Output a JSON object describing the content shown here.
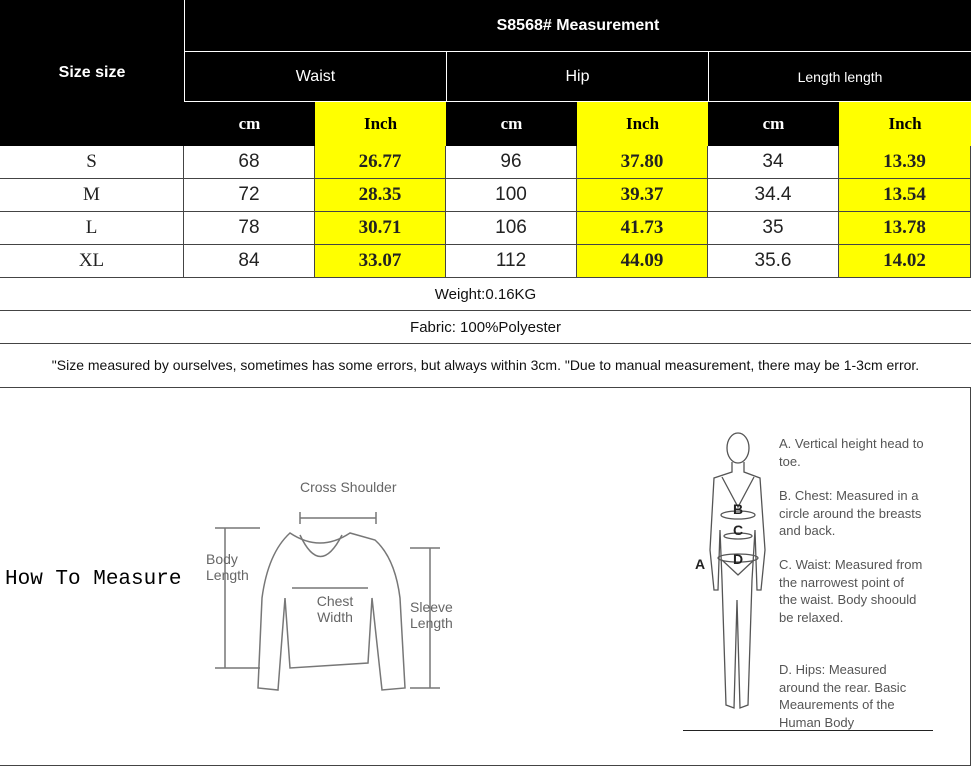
{
  "title": "S8568# Measurement",
  "size_header": "Size size",
  "groups": [
    "Waist",
    "Hip",
    "Length length"
  ],
  "units": [
    "cm",
    "Inch",
    "cm",
    "Inch",
    "cm",
    "Inch"
  ],
  "rows": [
    {
      "size": "S",
      "values": [
        "68",
        "26.77",
        "96",
        "37.80",
        "34",
        "13.39"
      ]
    },
    {
      "size": "M",
      "values": [
        "72",
        "28.35",
        "100",
        "39.37",
        "34.4",
        "13.54"
      ]
    },
    {
      "size": "L",
      "values": [
        "78",
        "30.71",
        "106",
        "41.73",
        "35",
        "13.78"
      ]
    },
    {
      "size": "XL",
      "values": [
        "84",
        "33.07",
        "112",
        "44.09",
        "35.6",
        "14.02"
      ]
    }
  ],
  "weight": "Weight:0.16KG",
  "fabric": "Fabric: 100%Polyester",
  "note": "\"Size measured by ourselves, sometimes has some errors, but always within 3cm. \"Due to manual measurement, there may be 1-3cm error.",
  "how_to_measure": "How To Measure",
  "garment_labels": {
    "cross_shoulder": "Cross Shoulder",
    "body_length": "Body Length",
    "chest_width": "Chest Width",
    "sleeve_length": "Sleeve Length"
  },
  "body_markers": [
    "A",
    "B",
    "C",
    "D"
  ],
  "body_notes": [
    "A. Vertical height head to toe.",
    "B. Chest: Measured in a circle around the breasts and back.",
    "C. Waist: Measured from the narrowest point of the waist. Body shoould be relaxed.",
    "D. Hips: Measured around the rear. Basic Meaurements of the Human Body"
  ],
  "colors": {
    "header_bg": "#000000",
    "highlight": "#ffff00"
  }
}
